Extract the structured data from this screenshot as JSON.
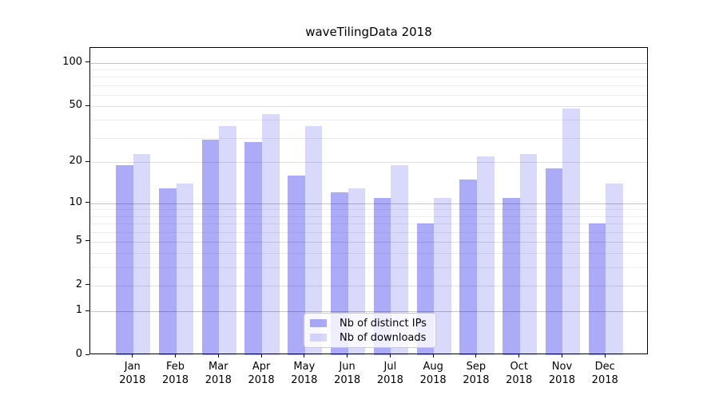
{
  "title": "waveTilingData 2018",
  "chart_data": {
    "type": "bar",
    "categories": [
      "Jan",
      "Feb",
      "Mar",
      "Apr",
      "May",
      "Jun",
      "Jul",
      "Aug",
      "Sep",
      "Oct",
      "Nov",
      "Dec"
    ],
    "category_year": "2018",
    "series": [
      {
        "name": "Nb of distinct IPs",
        "color": "rgba(0,0,230,0.33)",
        "values": [
          19,
          13,
          29,
          28,
          16,
          12,
          11,
          7,
          15,
          11,
          18,
          7
        ]
      },
      {
        "name": "Nb of downloads",
        "color": "rgba(0,0,230,0.15)",
        "values": [
          23,
          14,
          36,
          44,
          36,
          13,
          19,
          11,
          22,
          23,
          48,
          14
        ]
      }
    ],
    "yscale": "log10(value+1)",
    "yticks": [
      0,
      1,
      2,
      5,
      10,
      20,
      50,
      100
    ],
    "yticks_minor": [
      3,
      4,
      6,
      7,
      8,
      9,
      30,
      40,
      60,
      70,
      80,
      90
    ],
    "ylim": [
      0,
      127
    ],
    "grid": true,
    "legend_position": "lower-center"
  },
  "colors": {
    "background": "#ffffff",
    "axis": "#000000",
    "grid_major": "#c4c4c4",
    "grid_mid": "#e0e0e0",
    "grid_minor": "#ededed",
    "text": "#000000",
    "legend_border": "#cccccc",
    "legend_bg": "rgba(255,255,255,0.8)"
  }
}
